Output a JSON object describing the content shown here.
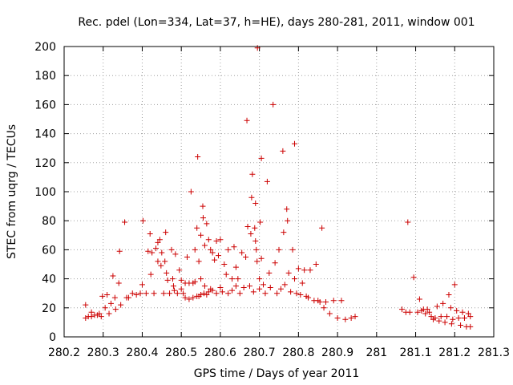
{
  "chart_data": {
    "type": "scatter",
    "title": "Rec. pdel (Lon=334, Lat=37, h=HE), days 280-281, 2011, window 001",
    "xlabel": "GPS time / Days of year 2011",
    "ylabel": "STEC from uqrg / TECUs",
    "xlim": [
      280.2,
      281.3
    ],
    "ylim": [
      0,
      200
    ],
    "x_ticks": [
      "280.2",
      "280.3",
      "280.4",
      "280.5",
      "280.6",
      "280.7",
      "280.8",
      "280.9",
      "281",
      "281.1",
      "281.2",
      "281.3"
    ],
    "y_ticks": [
      "0",
      "20",
      "40",
      "60",
      "80",
      "100",
      "120",
      "140",
      "160",
      "180",
      "200"
    ],
    "grid": true,
    "marker": "+",
    "marker_color": "#cc0000",
    "points": [
      [
        280.255,
        22
      ],
      [
        280.255,
        13
      ],
      [
        280.262,
        14
      ],
      [
        280.27,
        17
      ],
      [
        280.27,
        14
      ],
      [
        280.278,
        15
      ],
      [
        280.285,
        15
      ],
      [
        280.29,
        16
      ],
      [
        280.295,
        14
      ],
      [
        280.298,
        28
      ],
      [
        280.305,
        20
      ],
      [
        280.31,
        29
      ],
      [
        280.315,
        16
      ],
      [
        280.32,
        23
      ],
      [
        280.325,
        42
      ],
      [
        280.33,
        27
      ],
      [
        280.332,
        19
      ],
      [
        280.34,
        37
      ],
      [
        280.342,
        59
      ],
      [
        280.345,
        22
      ],
      [
        280.355,
        79
      ],
      [
        280.36,
        27
      ],
      [
        280.365,
        27
      ],
      [
        280.375,
        30
      ],
      [
        280.385,
        29
      ],
      [
        280.395,
        30
      ],
      [
        280.4,
        36
      ],
      [
        280.402,
        80
      ],
      [
        280.41,
        30
      ],
      [
        280.415,
        59
      ],
      [
        280.42,
        71
      ],
      [
        280.422,
        43
      ],
      [
        280.425,
        58
      ],
      [
        280.43,
        30
      ],
      [
        280.435,
        61
      ],
      [
        280.44,
        65
      ],
      [
        280.44,
        52
      ],
      [
        280.445,
        67
      ],
      [
        280.448,
        49
      ],
      [
        280.45,
        58
      ],
      [
        280.455,
        30
      ],
      [
        280.458,
        52
      ],
      [
        280.46,
        72
      ],
      [
        280.462,
        44
      ],
      [
        280.465,
        39
      ],
      [
        280.47,
        30
      ],
      [
        280.475,
        60
      ],
      [
        280.478,
        40
      ],
      [
        280.48,
        35
      ],
      [
        280.482,
        32
      ],
      [
        280.485,
        57
      ],
      [
        280.49,
        30
      ],
      [
        280.495,
        46
      ],
      [
        280.5,
        39
      ],
      [
        280.5,
        33
      ],
      [
        280.505,
        30
      ],
      [
        280.51,
        37
      ],
      [
        280.51,
        27
      ],
      [
        280.515,
        55
      ],
      [
        280.52,
        37
      ],
      [
        280.52,
        26
      ],
      [
        280.525,
        100
      ],
      [
        280.53,
        37
      ],
      [
        280.53,
        27
      ],
      [
        280.535,
        60
      ],
      [
        280.535,
        38
      ],
      [
        280.54,
        75
      ],
      [
        280.54,
        28
      ],
      [
        280.542,
        124
      ],
      [
        280.545,
        52
      ],
      [
        280.545,
        28
      ],
      [
        280.55,
        70
      ],
      [
        280.55,
        40
      ],
      [
        280.55,
        29
      ],
      [
        280.555,
        90
      ],
      [
        280.556,
        82
      ],
      [
        280.558,
        30
      ],
      [
        280.56,
        63
      ],
      [
        280.56,
        35
      ],
      [
        280.565,
        78
      ],
      [
        280.565,
        29
      ],
      [
        280.57,
        67
      ],
      [
        280.57,
        31
      ],
      [
        280.575,
        60
      ],
      [
        280.575,
        33
      ],
      [
        280.58,
        58
      ],
      [
        280.58,
        32
      ],
      [
        280.585,
        53
      ],
      [
        280.59,
        66
      ],
      [
        280.59,
        30
      ],
      [
        280.595,
        56
      ],
      [
        280.6,
        67
      ],
      [
        280.6,
        34
      ],
      [
        280.605,
        31
      ],
      [
        280.61,
        50
      ],
      [
        280.615,
        43
      ],
      [
        280.62,
        30
      ],
      [
        280.62,
        60
      ],
      [
        280.63,
        32
      ],
      [
        280.63,
        40
      ],
      [
        280.635,
        62
      ],
      [
        280.64,
        48
      ],
      [
        280.64,
        35
      ],
      [
        280.645,
        40
      ],
      [
        280.65,
        30
      ],
      [
        280.655,
        58
      ],
      [
        280.66,
        34
      ],
      [
        280.665,
        55
      ],
      [
        280.668,
        149
      ],
      [
        280.67,
        76
      ],
      [
        280.675,
        35
      ],
      [
        280.678,
        71
      ],
      [
        280.68,
        96
      ],
      [
        280.682,
        112
      ],
      [
        280.685,
        31
      ],
      [
        280.688,
        75
      ],
      [
        280.69,
        92
      ],
      [
        280.69,
        66
      ],
      [
        280.692,
        60
      ],
      [
        280.694,
        52
      ],
      [
        280.695,
        199
      ],
      [
        280.7,
        33
      ],
      [
        280.7,
        40
      ],
      [
        280.702,
        79
      ],
      [
        280.705,
        123
      ],
      [
        280.705,
        54
      ],
      [
        280.71,
        36
      ],
      [
        280.715,
        30
      ],
      [
        280.72,
        107
      ],
      [
        280.725,
        44
      ],
      [
        280.728,
        34
      ],
      [
        280.735,
        160
      ],
      [
        280.74,
        51
      ],
      [
        280.745,
        30
      ],
      [
        280.75,
        60
      ],
      [
        280.755,
        33
      ],
      [
        280.76,
        128
      ],
      [
        280.762,
        72
      ],
      [
        280.765,
        36
      ],
      [
        280.77,
        88
      ],
      [
        280.772,
        80
      ],
      [
        280.775,
        44
      ],
      [
        280.78,
        31
      ],
      [
        280.785,
        60
      ],
      [
        280.79,
        133
      ],
      [
        280.79,
        40
      ],
      [
        280.795,
        30
      ],
      [
        280.8,
        47
      ],
      [
        280.805,
        29
      ],
      [
        280.81,
        37
      ],
      [
        280.815,
        46
      ],
      [
        280.82,
        28
      ],
      [
        280.825,
        27
      ],
      [
        280.83,
        46
      ],
      [
        280.84,
        25
      ],
      [
        280.845,
        50
      ],
      [
        280.85,
        25
      ],
      [
        280.855,
        24
      ],
      [
        280.86,
        75
      ],
      [
        280.865,
        20
      ],
      [
        280.87,
        24
      ],
      [
        280.88,
        16
      ],
      [
        280.89,
        25
      ],
      [
        280.9,
        13
      ],
      [
        280.91,
        25
      ],
      [
        280.92,
        12
      ],
      [
        280.935,
        13
      ],
      [
        280.945,
        14
      ],
      [
        281.065,
        19
      ],
      [
        281.075,
        17
      ],
      [
        281.08,
        79
      ],
      [
        281.085,
        17
      ],
      [
        281.095,
        41
      ],
      [
        281.105,
        17
      ],
      [
        281.11,
        26
      ],
      [
        281.115,
        18
      ],
      [
        281.12,
        19
      ],
      [
        281.125,
        16
      ],
      [
        281.13,
        19
      ],
      [
        281.135,
        17
      ],
      [
        281.14,
        14
      ],
      [
        281.145,
        12
      ],
      [
        281.15,
        13
      ],
      [
        281.155,
        21
      ],
      [
        281.16,
        11
      ],
      [
        281.165,
        14
      ],
      [
        281.17,
        23
      ],
      [
        281.175,
        10
      ],
      [
        281.18,
        14
      ],
      [
        281.185,
        29
      ],
      [
        281.19,
        20
      ],
      [
        281.192,
        9
      ],
      [
        281.195,
        12
      ],
      [
        281.2,
        36
      ],
      [
        281.205,
        18
      ],
      [
        281.21,
        13
      ],
      [
        281.215,
        8
      ],
      [
        281.22,
        17
      ],
      [
        281.225,
        13
      ],
      [
        281.23,
        7
      ],
      [
        281.235,
        16
      ],
      [
        281.24,
        14
      ],
      [
        281.24,
        7
      ]
    ]
  }
}
